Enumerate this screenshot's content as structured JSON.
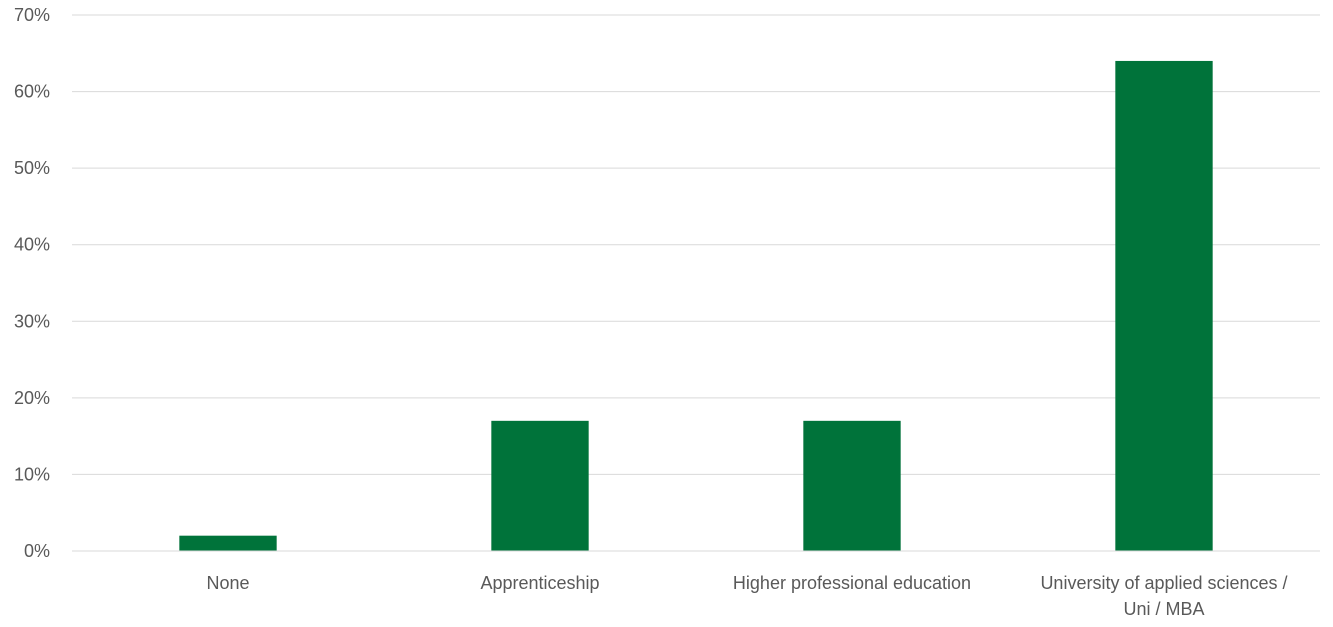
{
  "chart_data": {
    "type": "bar",
    "categories": [
      [
        "None"
      ],
      [
        "Apprenticeship"
      ],
      [
        "Higher professional education"
      ],
      [
        "University of applied sciences /",
        "Uni / MBA"
      ]
    ],
    "values": [
      2,
      17,
      17,
      64
    ],
    "ylim": [
      0,
      70
    ],
    "yticks": [
      0,
      10,
      20,
      30,
      40,
      50,
      60,
      70
    ],
    "ytick_suffix": "%",
    "grid": true,
    "bar_color": "#00733a",
    "grid_color": "#d9d9d9",
    "label_color": "#595959"
  }
}
